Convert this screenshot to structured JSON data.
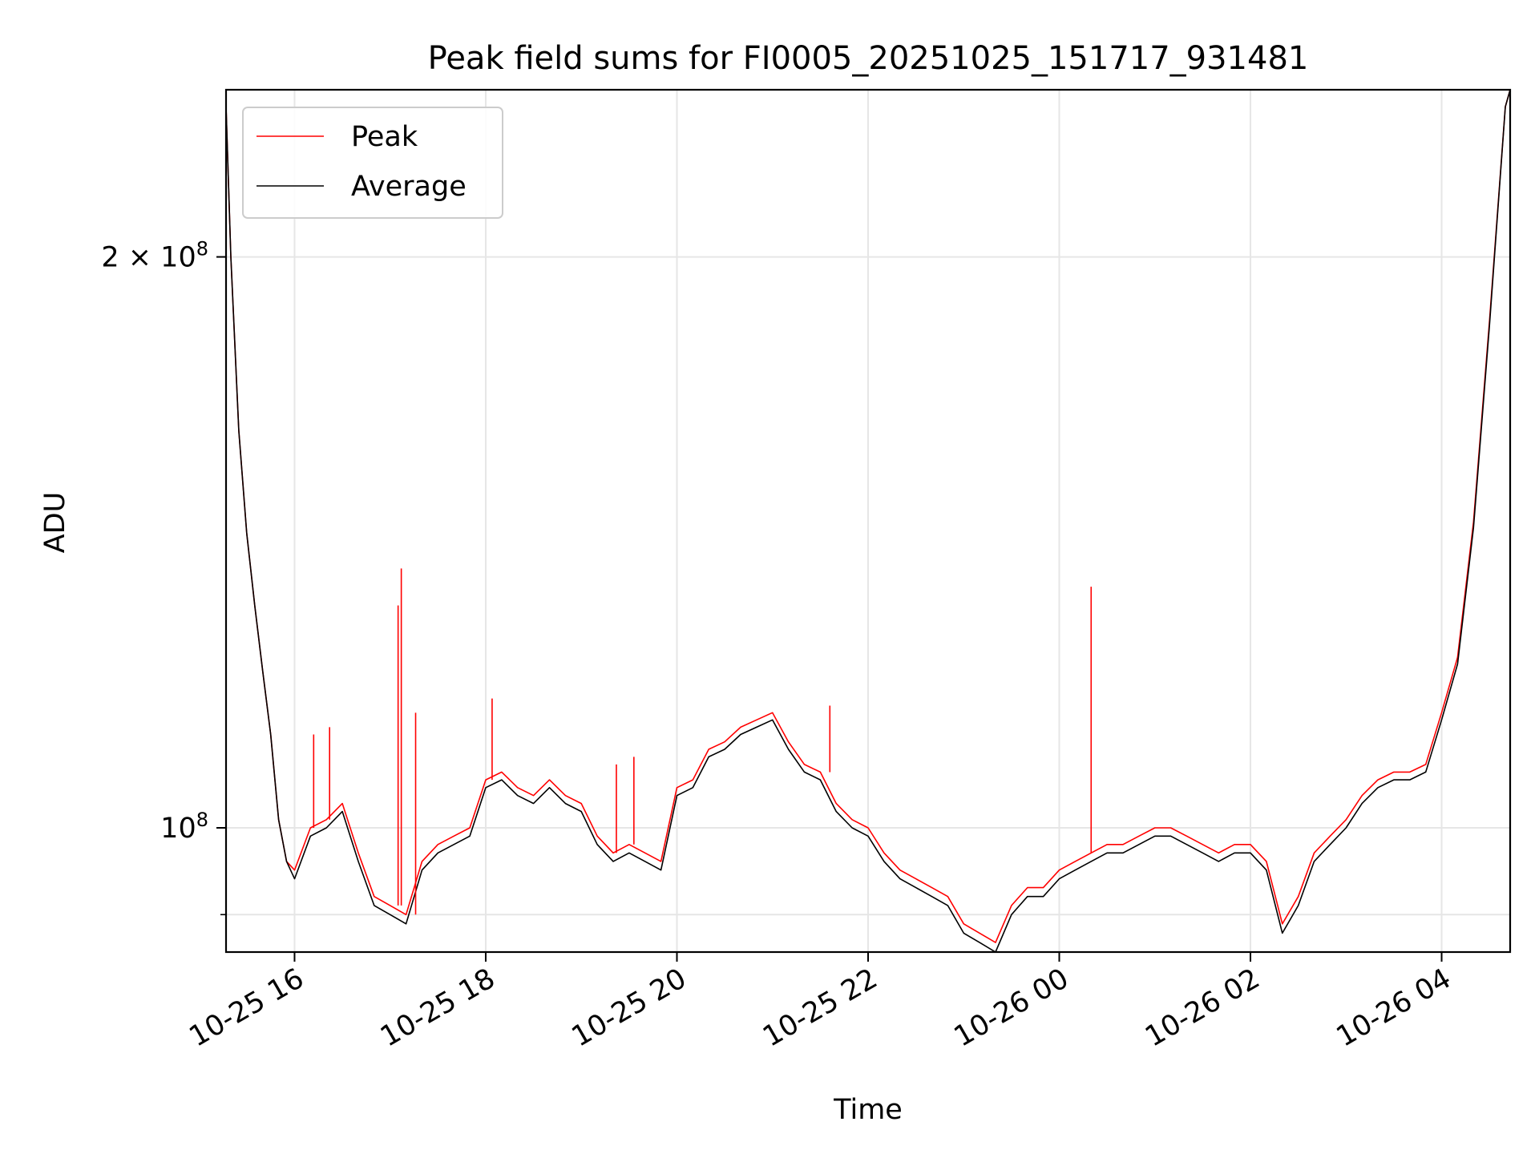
{
  "chart_data": {
    "type": "line",
    "title": "Peak field sums for FI0005_20251025_151717_931481",
    "xlabel": "Time",
    "ylabel": "ADU",
    "yscale": "log",
    "grid": true,
    "legend_position": "upper-left",
    "xlim": [
      "2025-10-25 15:17",
      "2025-10-26 04:43"
    ],
    "ylim": [
      86000000,
      245000000
    ],
    "x_ticks": [
      {
        "value": "2025-10-25 16:00",
        "label": "10-25 16"
      },
      {
        "value": "2025-10-25 18:00",
        "label": "10-25 18"
      },
      {
        "value": "2025-10-25 20:00",
        "label": "10-25 20"
      },
      {
        "value": "2025-10-25 22:00",
        "label": "10-25 22"
      },
      {
        "value": "2025-10-26 00:00",
        "label": "10-26 00"
      },
      {
        "value": "2025-10-26 02:00",
        "label": "10-26 02"
      },
      {
        "value": "2025-10-26 04:00",
        "label": "10-26 04"
      }
    ],
    "y_ticks_major": [
      {
        "value": 100000000,
        "base": "10",
        "exp": "8",
        "mult": ""
      },
      {
        "value": 200000000,
        "base": "10",
        "exp": "8",
        "mult": "2 × "
      }
    ],
    "y_ticks_minor": [
      90000000
    ],
    "x_dates": [
      "2025-10-25 15:17",
      "2025-10-25 15:20",
      "2025-10-25 15:25",
      "2025-10-25 15:30",
      "2025-10-25 15:35",
      "2025-10-25 15:40",
      "2025-10-25 15:45",
      "2025-10-25 15:50",
      "2025-10-25 15:55",
      "2025-10-25 16:00",
      "2025-10-25 16:10",
      "2025-10-25 16:20",
      "2025-10-25 16:30",
      "2025-10-25 16:40",
      "2025-10-25 16:50",
      "2025-10-25 17:00",
      "2025-10-25 17:10",
      "2025-10-25 17:20",
      "2025-10-25 17:30",
      "2025-10-25 17:40",
      "2025-10-25 17:50",
      "2025-10-25 18:00",
      "2025-10-25 18:10",
      "2025-10-25 18:20",
      "2025-10-25 18:30",
      "2025-10-25 18:40",
      "2025-10-25 18:50",
      "2025-10-25 19:00",
      "2025-10-25 19:10",
      "2025-10-25 19:20",
      "2025-10-25 19:30",
      "2025-10-25 19:40",
      "2025-10-25 19:50",
      "2025-10-25 20:00",
      "2025-10-25 20:10",
      "2025-10-25 20:20",
      "2025-10-25 20:30",
      "2025-10-25 20:40",
      "2025-10-25 20:50",
      "2025-10-25 21:00",
      "2025-10-25 21:10",
      "2025-10-25 21:20",
      "2025-10-25 21:30",
      "2025-10-25 21:40",
      "2025-10-25 21:50",
      "2025-10-25 22:00",
      "2025-10-25 22:10",
      "2025-10-25 22:20",
      "2025-10-25 22:30",
      "2025-10-25 22:40",
      "2025-10-25 22:50",
      "2025-10-25 23:00",
      "2025-10-25 23:10",
      "2025-10-25 23:20",
      "2025-10-25 23:30",
      "2025-10-25 23:40",
      "2025-10-25 23:50",
      "2025-10-26 00:00",
      "2025-10-26 00:10",
      "2025-10-26 00:20",
      "2025-10-26 00:30",
      "2025-10-26 00:40",
      "2025-10-26 00:50",
      "2025-10-26 01:00",
      "2025-10-26 01:10",
      "2025-10-26 01:20",
      "2025-10-26 01:30",
      "2025-10-26 01:40",
      "2025-10-26 01:50",
      "2025-10-26 02:00",
      "2025-10-26 02:10",
      "2025-10-26 02:20",
      "2025-10-26 02:30",
      "2025-10-26 02:40",
      "2025-10-26 02:50",
      "2025-10-26 03:00",
      "2025-10-26 03:10",
      "2025-10-26 03:20",
      "2025-10-26 03:30",
      "2025-10-26 03:40",
      "2025-10-26 03:50",
      "2025-10-26 04:00",
      "2025-10-26 04:10",
      "2025-10-26 04:20",
      "2025-10-26 04:30",
      "2025-10-26 04:40",
      "2025-10-26 04:43"
    ],
    "series": [
      {
        "name": "Peak",
        "color": "#ff0000",
        "values": [
          240000000,
          200000000,
          162000000,
          143000000,
          131000000,
          121000000,
          112000000,
          101000000,
          96000000,
          95000000,
          100000000,
          101000000,
          103000000,
          97000000,
          92000000,
          91000000,
          90000000,
          96000000,
          98000000,
          99000000,
          100000000,
          106000000,
          107000000,
          105000000,
          104000000,
          106000000,
          104000000,
          103000000,
          99000000,
          97000000,
          98000000,
          97000000,
          96000000,
          105000000,
          106000000,
          110000000,
          111000000,
          113000000,
          114000000,
          115000000,
          111000000,
          108000000,
          107000000,
          103000000,
          101000000,
          100000000,
          97000000,
          95000000,
          94000000,
          93000000,
          92000000,
          89000000,
          88000000,
          87000000,
          91000000,
          93000000,
          93000000,
          95000000,
          96000000,
          97000000,
          98000000,
          98000000,
          99000000,
          100000000,
          100000000,
          99000000,
          98000000,
          97000000,
          98000000,
          98000000,
          96000000,
          89000000,
          92000000,
          97000000,
          99000000,
          101000000,
          104000000,
          106000000,
          107000000,
          107000000,
          108000000,
          115000000,
          123000000,
          145000000,
          185000000,
          240000000,
          245000000
        ]
      },
      {
        "name": "Average",
        "color": "#000000",
        "values": [
          240000000,
          200000000,
          162000000,
          143000000,
          131000000,
          121000000,
          112000000,
          101000000,
          96000000,
          94000000,
          99000000,
          100000000,
          102000000,
          96000000,
          91000000,
          90000000,
          89000000,
          95000000,
          97000000,
          98000000,
          99000000,
          105000000,
          106000000,
          104000000,
          103000000,
          105000000,
          103000000,
          102000000,
          98000000,
          96000000,
          97000000,
          96000000,
          95000000,
          104000000,
          105000000,
          109000000,
          110000000,
          112000000,
          113000000,
          114000000,
          110000000,
          107000000,
          106000000,
          102000000,
          100000000,
          99000000,
          96000000,
          94000000,
          93000000,
          92000000,
          91000000,
          88000000,
          87000000,
          86000000,
          90000000,
          92000000,
          92000000,
          94000000,
          95000000,
          96000000,
          97000000,
          97000000,
          98000000,
          99000000,
          99000000,
          98000000,
          97000000,
          96000000,
          97000000,
          97000000,
          95000000,
          88000000,
          91000000,
          96000000,
          98000000,
          100000000,
          103000000,
          105000000,
          106000000,
          106000000,
          107000000,
          114000000,
          122000000,
          144000000,
          184000000,
          240000000,
          245000000
        ]
      }
    ],
    "spikes": [
      {
        "x": "2025-10-25 16:12",
        "peak": 112000000
      },
      {
        "x": "2025-10-25 16:22",
        "peak": 113000000
      },
      {
        "x": "2025-10-25 17:05",
        "peak": 131000000
      },
      {
        "x": "2025-10-25 17:07",
        "peak": 137000000
      },
      {
        "x": "2025-10-25 17:16",
        "peak": 115000000
      },
      {
        "x": "2025-10-25 18:04",
        "peak": 117000000
      },
      {
        "x": "2025-10-25 19:22",
        "peak": 108000000
      },
      {
        "x": "2025-10-25 19:33",
        "peak": 109000000
      },
      {
        "x": "2025-10-25 21:36",
        "peak": 116000000
      },
      {
        "x": "2025-10-26 00:20",
        "peak": 134000000
      }
    ]
  }
}
